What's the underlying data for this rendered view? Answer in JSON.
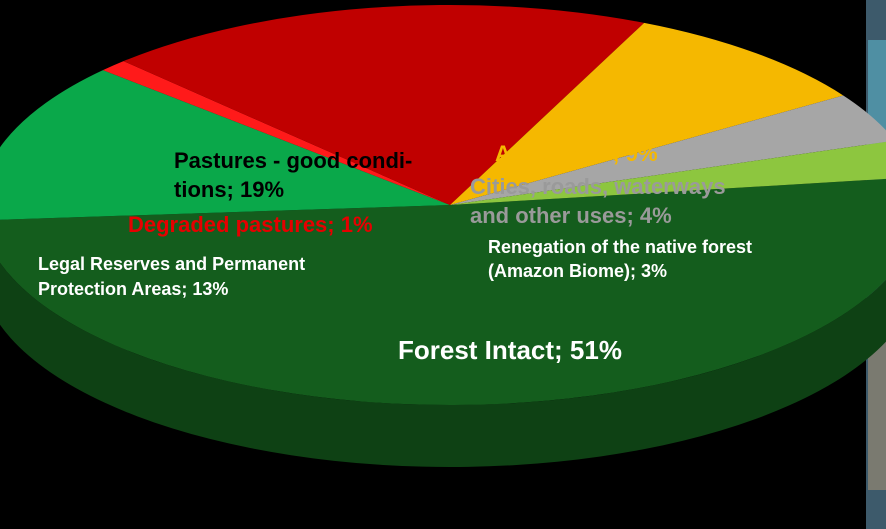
{
  "chart_data": {
    "type": "pie3d",
    "values": [
      51,
      13,
      1,
      19,
      9,
      4,
      3
    ],
    "value_labels": [
      [
        "Forest Intact; 51%"
      ],
      [
        "Legal Reserves and Permanent",
        "Protection Areas; 13%"
      ],
      [
        "Degraded pastures; 1%"
      ],
      [
        "Pastures - good condi-",
        "tions; 19%"
      ],
      [
        "Agriculture; 9%"
      ],
      [
        "Cities, roads, waterways",
        "and other uses; 4%"
      ],
      [
        "Renegation of the native forest",
        "(Amazon Biome); 3%"
      ]
    ],
    "colors": [
      "#145d1d",
      "#0aa84a",
      "#ff1a1a",
      "#c00000",
      "#f5b800",
      "#a6a6a6",
      "#8dc63f"
    ],
    "label_colors": [
      "#ffffff",
      "#ffffff",
      "#e60000",
      "#000000",
      "#f5b800",
      "#9a9a9a",
      "#ffffff"
    ]
  }
}
